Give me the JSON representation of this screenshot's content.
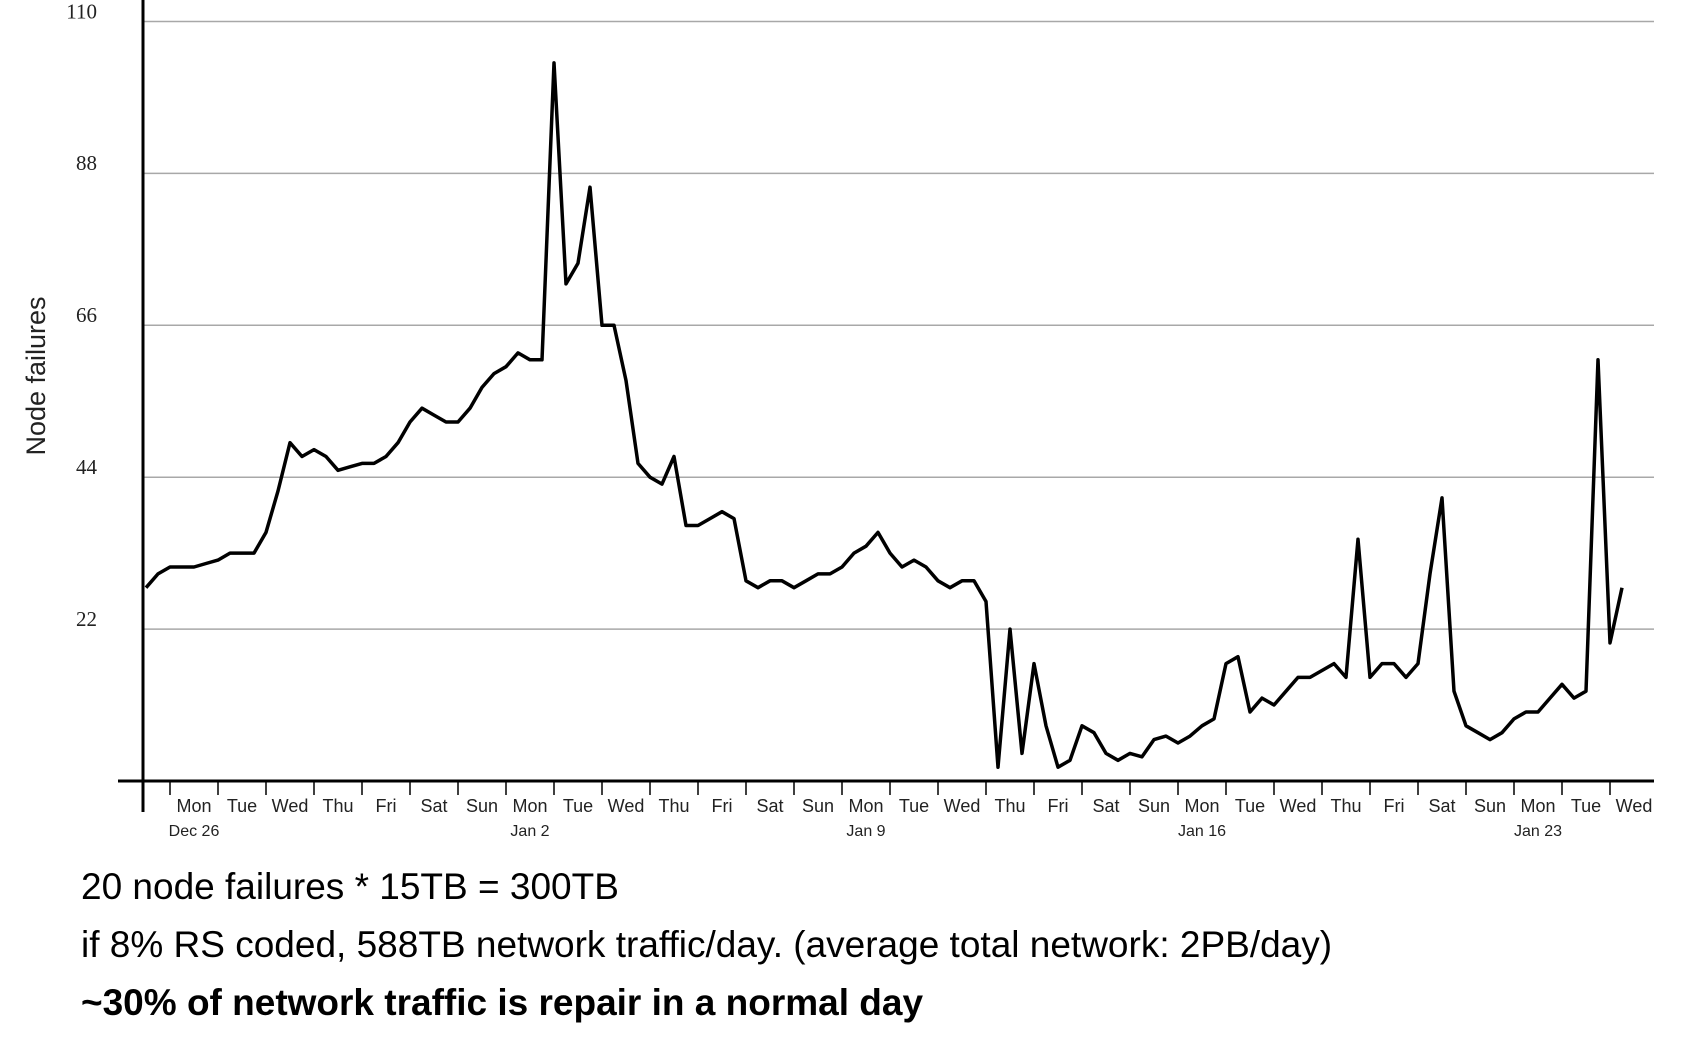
{
  "chart_data": {
    "type": "line",
    "ylabel": "Node failures",
    "color": "#000000",
    "grid": true,
    "ylim": [
      0,
      110
    ],
    "yticks": [
      22,
      44,
      66,
      88,
      110
    ],
    "categories": [
      null,
      null,
      null,
      null,
      "Mon",
      null,
      null,
      null,
      "Tue",
      null,
      null,
      null,
      "Wed",
      null,
      null,
      null,
      "Thu",
      null,
      null,
      null,
      "Fri",
      null,
      null,
      null,
      "Sat",
      null,
      null,
      null,
      "Sun",
      null,
      null,
      null,
      "Mon",
      null,
      null,
      null,
      "Tue",
      null,
      null,
      null,
      "Wed",
      null,
      null,
      null,
      "Thu",
      null,
      null,
      null,
      "Fri",
      null,
      null,
      null,
      "Sat",
      null,
      null,
      null,
      "Sun",
      null,
      null,
      null,
      "Mon",
      null,
      null,
      null,
      "Tue",
      null,
      null,
      null,
      "Wed",
      null,
      null,
      null,
      "Thu",
      null,
      null,
      null,
      "Fri",
      null,
      null,
      null,
      "Sat",
      null,
      null,
      null,
      "Sun",
      null,
      null,
      null,
      "Mon",
      null,
      null,
      null,
      "Tue",
      null,
      null,
      null,
      "Wed",
      null,
      null,
      null,
      "Thu",
      null,
      null,
      null,
      "Fri",
      null,
      null,
      null,
      "Sat",
      null,
      null,
      null,
      "Sun",
      null,
      null,
      null,
      "Mon",
      null,
      null,
      null,
      "Tue",
      null,
      null,
      null,
      "Wed"
    ],
    "dates": [
      null,
      null,
      null,
      null,
      "Dec 26",
      null,
      null,
      null,
      null,
      null,
      null,
      null,
      null,
      null,
      null,
      null,
      null,
      null,
      null,
      null,
      null,
      null,
      null,
      null,
      null,
      null,
      null,
      null,
      null,
      null,
      null,
      null,
      "Jan 2",
      null,
      null,
      null,
      null,
      null,
      null,
      null,
      null,
      null,
      null,
      null,
      null,
      null,
      null,
      null,
      null,
      null,
      null,
      null,
      null,
      null,
      null,
      null,
      null,
      null,
      null,
      null,
      "Jan 9",
      null,
      null,
      null,
      null,
      null,
      null,
      null,
      null,
      null,
      null,
      null,
      null,
      null,
      null,
      null,
      null,
      null,
      null,
      null,
      null,
      null,
      null,
      null,
      null,
      null,
      null,
      null,
      "Jan 16",
      null,
      null,
      null,
      null,
      null,
      null,
      null,
      null,
      null,
      null,
      null,
      null,
      null,
      null,
      null,
      null,
      null,
      null,
      null,
      null,
      null,
      null,
      null,
      null,
      null,
      null,
      null,
      "Jan 23",
      null,
      null,
      null,
      null,
      null,
      null,
      null,
      null
    ],
    "values": [
      28,
      30,
      31,
      31,
      31,
      31.5,
      32,
      33,
      33,
      33,
      36,
      42,
      49,
      47,
      48,
      47,
      45,
      45.5,
      46,
      46,
      47,
      49,
      52,
      54,
      53,
      52,
      52,
      54,
      57,
      59,
      60,
      62,
      61,
      61,
      104,
      72,
      75,
      86,
      66,
      66,
      58,
      46,
      44,
      43,
      47,
      37,
      37,
      38,
      39,
      38,
      29,
      28,
      29,
      29,
      28,
      29,
      30,
      30,
      31,
      33,
      34,
      36,
      33,
      31,
      32,
      31,
      29,
      28,
      29,
      29,
      26,
      2,
      22,
      4,
      17,
      8,
      2,
      3,
      8,
      7,
      4,
      3,
      4,
      3.5,
      6,
      6.5,
      5.5,
      6.5,
      8,
      9,
      17,
      18,
      10,
      12,
      11,
      13,
      15,
      15,
      16,
      17,
      15,
      35,
      15,
      17,
      17,
      15,
      17,
      30,
      41,
      13,
      8,
      7,
      6,
      7,
      9,
      10,
      10,
      12,
      14,
      12,
      13,
      61,
      20,
      28,
      null
    ]
  },
  "notes": [
    "20 node failures * 15TB = 300TB",
    "if 8% RS coded, 588TB network traffic/day. (average total network: 2PB/day)",
    "~30% of network traffic is repair in a normal day"
  ]
}
